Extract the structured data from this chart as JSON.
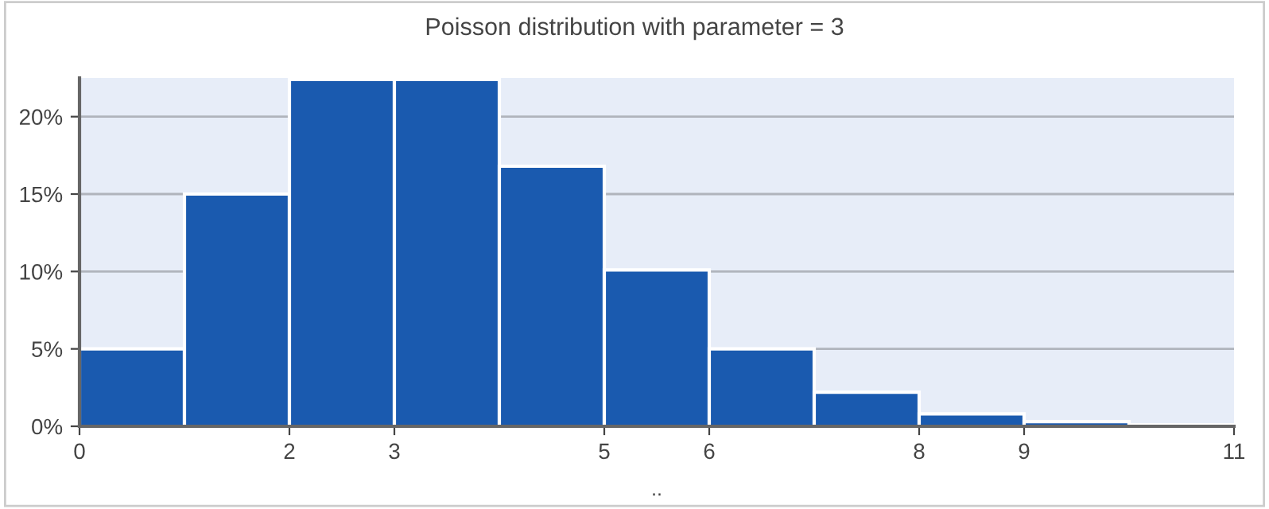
{
  "chart_data": {
    "type": "histogram",
    "title": "Poisson distribution with parameter = 3",
    "xlabel": "..",
    "bins": [
      0,
      1,
      2,
      3,
      4,
      5,
      6,
      7,
      8,
      9,
      10,
      11
    ],
    "values": [
      5.0,
      15.0,
      22.4,
      22.4,
      16.8,
      10.1,
      5.0,
      2.2,
      0.8,
      0.3,
      0.1
    ],
    "color": "#1a5aaf",
    "xlim": [
      0,
      11
    ],
    "xticks": [
      0,
      2,
      3,
      5,
      6,
      8,
      9,
      11
    ],
    "ylim": [
      0,
      22.5
    ],
    "yticks": [
      {
        "value": 0,
        "label": "0%"
      },
      {
        "value": 5,
        "label": "5%"
      },
      {
        "value": 10,
        "label": "10%"
      },
      {
        "value": 15,
        "label": "15%"
      },
      {
        "value": 20,
        "label": "20%"
      }
    ],
    "grid": "y"
  }
}
